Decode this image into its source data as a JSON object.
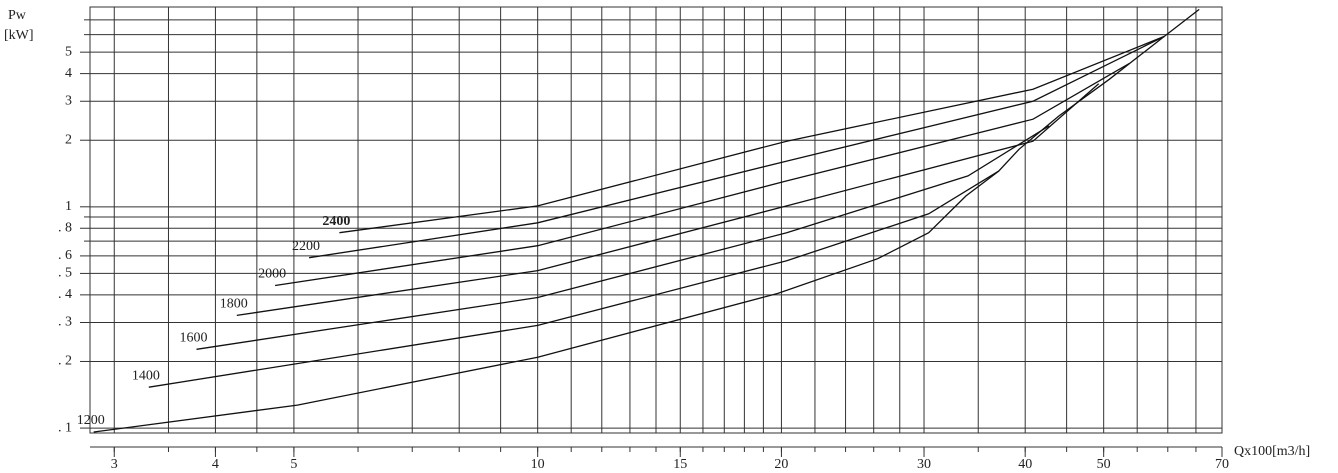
{
  "chart_data": {
    "type": "line",
    "y_label": [
      "Pw",
      "[kW]"
    ],
    "x_label": "Qx100[m3/h]",
    "log_x": true,
    "log_y": true,
    "grid": true,
    "xlim": [
      2.8,
      70
    ],
    "ylim": [
      0.095,
      8
    ],
    "xticks": [
      3,
      4,
      5,
      10,
      15,
      20,
      30,
      40,
      50,
      70
    ],
    "xgrid": [
      3,
      3.5,
      4,
      4.5,
      5,
      6,
      7,
      8,
      9,
      10,
      11,
      12,
      13,
      14,
      15,
      16,
      17,
      18,
      19,
      20,
      22,
      24,
      26,
      28,
      30,
      35,
      40,
      45,
      50,
      55,
      60,
      65
    ],
    "yticks": [
      {
        "value": 0.1,
        "label": ". 1"
      },
      {
        "value": 0.2,
        "label": ". 2"
      },
      {
        "value": 0.3,
        "label": ". 3"
      },
      {
        "value": 0.4,
        "label": ". 4"
      },
      {
        "value": 0.5,
        "label": ". 5"
      },
      {
        "value": 0.6,
        "label": ". 6"
      },
      {
        "value": 0.8,
        "label": ". 8"
      },
      1,
      2,
      3,
      4,
      5
    ],
    "ygrid": [
      0.7,
      0.9,
      6,
      7
    ],
    "color": "#111111",
    "series": [
      {
        "name": "1200",
        "x": [
          2.83,
          5.05,
          10,
          19.8,
          26.3,
          30.4,
          33.8,
          37.1,
          39.3,
          44.0,
          50.8,
          59.4,
          65.6
        ],
        "values": [
          0.096,
          0.127,
          0.209,
          0.406,
          0.583,
          0.764,
          1.12,
          1.45,
          1.82,
          2.57,
          3.77,
          5.89,
          7.8
        ]
      },
      {
        "name": "1400",
        "x": [
          3.31,
          10,
          20.3,
          30.4,
          37.1
        ],
        "values": [
          0.153,
          0.291,
          0.571,
          0.93,
          1.45
        ]
      },
      {
        "name": "1600",
        "x": [
          3.79,
          10,
          20.3,
          34,
          42.8
        ],
        "values": [
          0.227,
          0.389,
          0.764,
          1.38,
          2.32
        ]
      },
      {
        "name": "1800",
        "x": [
          4.25,
          10,
          20.3,
          40.9,
          49.3
        ],
        "values": [
          0.323,
          0.515,
          1.01,
          1.98,
          3.6
        ]
      },
      {
        "name": "2000",
        "x": [
          4.74,
          10,
          20.3,
          40.9,
          53.8
        ],
        "values": [
          0.441,
          0.667,
          1.31,
          2.49,
          4.45
        ]
      },
      {
        "name": "2200",
        "x": [
          5.22,
          10,
          20.3,
          40.9,
          59.4
        ],
        "values": [
          0.589,
          0.847,
          1.61,
          3.0,
          5.89
        ]
      },
      {
        "name": "2400",
        "font_weight": "bold",
        "x": [
          5.69,
          10,
          20.3,
          40.9,
          59.4
        ],
        "values": [
          0.764,
          1.01,
          1.98,
          3.4,
          5.89
        ]
      }
    ]
  }
}
